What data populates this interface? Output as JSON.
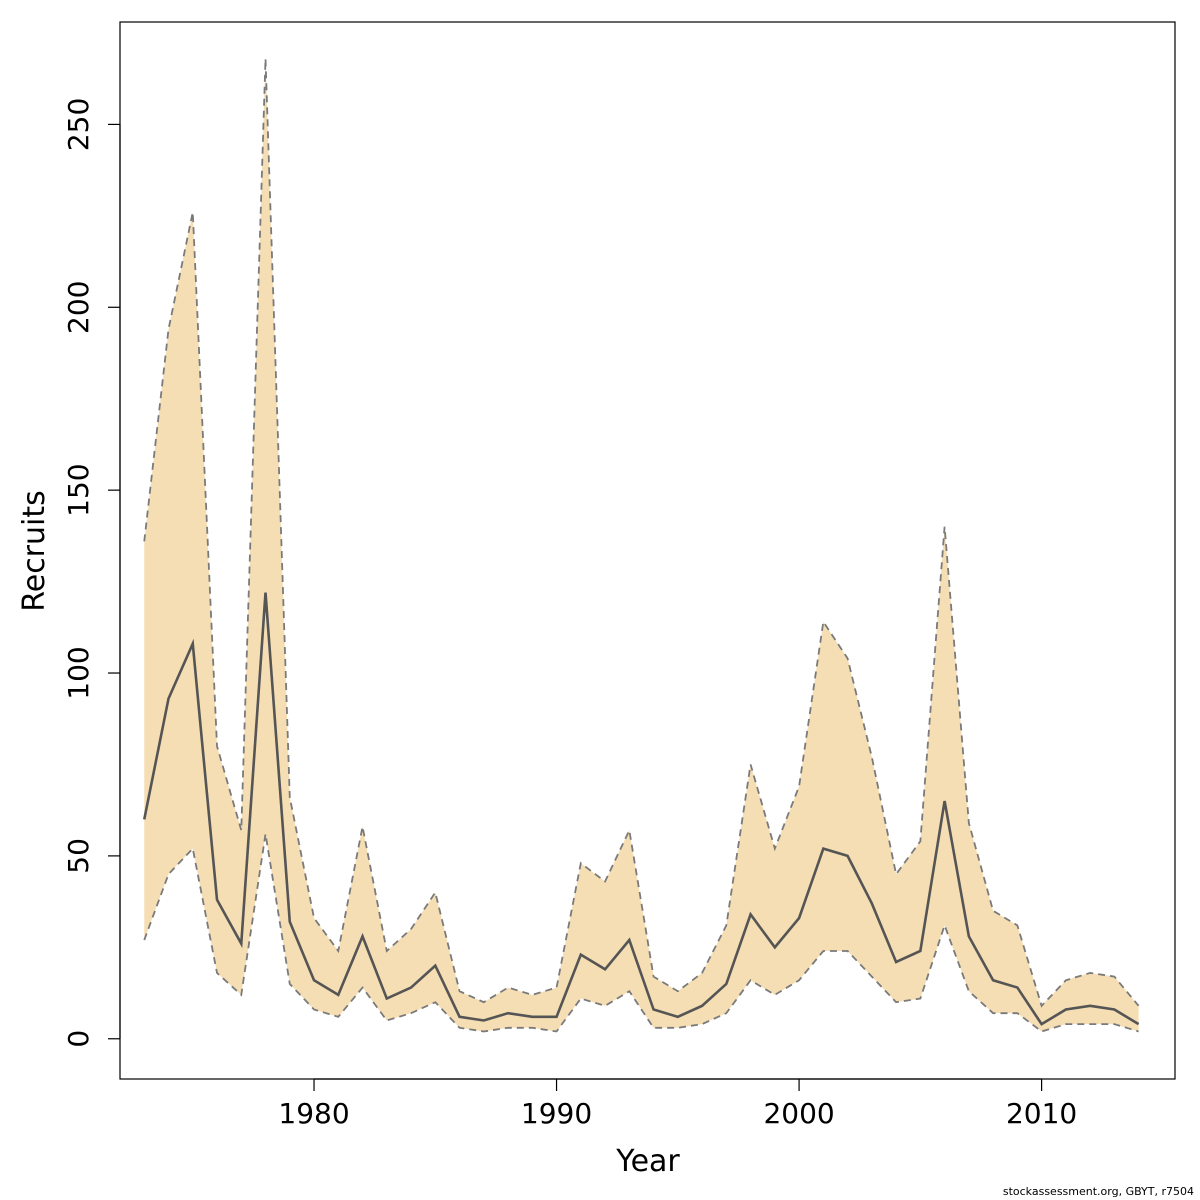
{
  "chart_data": {
    "type": "area",
    "title": "",
    "xlabel": "Year",
    "ylabel": "Recruits",
    "xlim": [
      1972,
      2015.5
    ],
    "ylim": [
      -11,
      278
    ],
    "x_ticks": [
      1980,
      1990,
      2000,
      2010
    ],
    "y_ticks": [
      0,
      50,
      100,
      150,
      200,
      250
    ],
    "grid": false,
    "colors": {
      "band": "#f5deb3",
      "median": "#555555",
      "bounds": "#7a7a7a"
    },
    "x": [
      1973,
      1974,
      1975,
      1976,
      1977,
      1978,
      1979,
      1980,
      1981,
      1982,
      1983,
      1984,
      1985,
      1986,
      1987,
      1988,
      1989,
      1990,
      1991,
      1992,
      1993,
      1994,
      1995,
      1996,
      1997,
      1998,
      1999,
      2000,
      2001,
      2002,
      2003,
      2004,
      2005,
      2006,
      2007,
      2008,
      2009,
      2010,
      2011,
      2012,
      2013,
      2014
    ],
    "series": [
      {
        "role": "median",
        "values": [
          60,
          93,
          108,
          38,
          26,
          122,
          32,
          16,
          12,
          28,
          11,
          14,
          20,
          6,
          5,
          7,
          6,
          6,
          23,
          19,
          27,
          8,
          6,
          9,
          15,
          34,
          25,
          33,
          52,
          50,
          37,
          21,
          24,
          65,
          28,
          16,
          14,
          4,
          8,
          9,
          8,
          4
        ]
      },
      {
        "role": "upper",
        "values": [
          136,
          194,
          226,
          80,
          57,
          268,
          66,
          33,
          24,
          58,
          24,
          30,
          40,
          13,
          10,
          14,
          12,
          14,
          48,
          43,
          57,
          17,
          13,
          18,
          31,
          75,
          52,
          69,
          114,
          104,
          77,
          45,
          54,
          140,
          59,
          35,
          31,
          9,
          16,
          18,
          17,
          9
        ]
      },
      {
        "role": "lower",
        "values": [
          27,
          45,
          52,
          18,
          12,
          56,
          15,
          8,
          6,
          14,
          5,
          7,
          10,
          3,
          2,
          3,
          3,
          2,
          11,
          9,
          13,
          3,
          3,
          4,
          7,
          16,
          12,
          16,
          24,
          24,
          17,
          10,
          11,
          31,
          13,
          7,
          7,
          2,
          4,
          4,
          4,
          2
        ]
      }
    ]
  },
  "credit": "stockassessment.org, GBYT, r7504"
}
